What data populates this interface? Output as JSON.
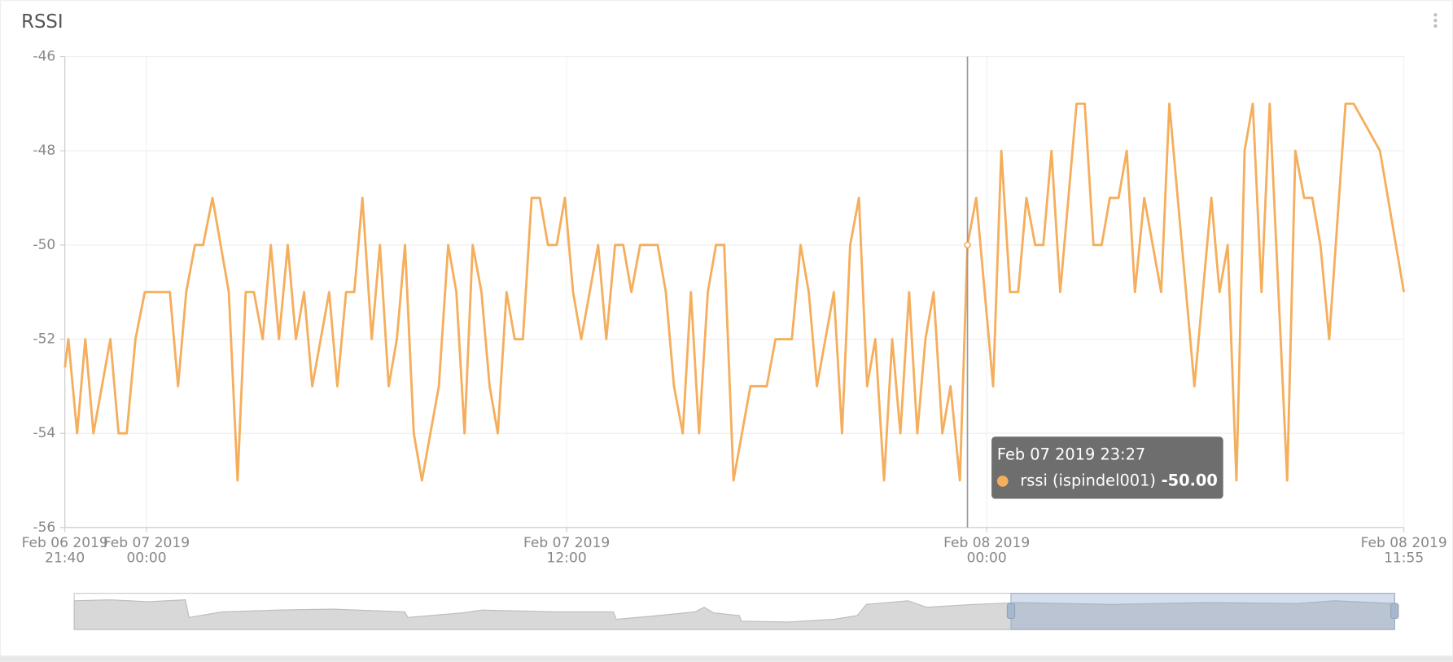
{
  "chart_data": {
    "type": "line",
    "title": "RSSI",
    "x": [
      "2019-02-06T21:40",
      "2019-02-06T21:46",
      "2019-02-06T22:01",
      "2019-02-06T22:15",
      "2019-02-06T22:29",
      "2019-02-06T22:58",
      "2019-02-06T23:12",
      "2019-02-06T23:26",
      "2019-02-06T23:41",
      "2019-02-06T23:57",
      "2019-02-07T00:40",
      "2019-02-07T00:54",
      "2019-02-07T01:08",
      "2019-02-07T01:23",
      "2019-02-07T01:37",
      "2019-02-07T01:53",
      "2019-02-07T02:21",
      "2019-02-07T02:36",
      "2019-02-07T02:50",
      "2019-02-07T03:04",
      "2019-02-07T03:19",
      "2019-02-07T03:33",
      "2019-02-07T03:47",
      "2019-02-07T04:02",
      "2019-02-07T04:16",
      "2019-02-07T04:30",
      "2019-02-07T04:44",
      "2019-02-07T05:13",
      "2019-02-07T05:27",
      "2019-02-07T05:42",
      "2019-02-07T05:56",
      "2019-02-07T06:10",
      "2019-02-07T06:26",
      "2019-02-07T06:40",
      "2019-02-07T06:55",
      "2019-02-07T07:09",
      "2019-02-07T07:23",
      "2019-02-07T07:38",
      "2019-02-07T07:52",
      "2019-02-07T08:21",
      "2019-02-07T08:37",
      "2019-02-07T08:51",
      "2019-02-07T09:05",
      "2019-02-07T09:19",
      "2019-02-07T09:34",
      "2019-02-07T09:48",
      "2019-02-07T10:02",
      "2019-02-07T10:17",
      "2019-02-07T10:31",
      "2019-02-07T10:45",
      "2019-02-07T11:00",
      "2019-02-07T11:14",
      "2019-02-07T11:28",
      "2019-02-07T11:43",
      "2019-02-07T11:57",
      "2019-02-07T12:11",
      "2019-02-07T12:25",
      "2019-02-07T12:54",
      "2019-02-07T13:08",
      "2019-02-07T13:23",
      "2019-02-07T13:37",
      "2019-02-07T13:51",
      "2019-02-07T14:06",
      "2019-02-07T14:36",
      "2019-02-07T14:50",
      "2019-02-07T15:04",
      "2019-02-07T15:19",
      "2019-02-07T15:33",
      "2019-02-07T15:47",
      "2019-02-07T16:02",
      "2019-02-07T16:16",
      "2019-02-07T16:30",
      "2019-02-07T16:46",
      "2019-02-07T17:15",
      "2019-02-07T17:43",
      "2019-02-07T17:58",
      "2019-02-07T18:26",
      "2019-02-07T18:41",
      "2019-02-07T18:55",
      "2019-02-07T19:09",
      "2019-02-07T19:38",
      "2019-02-07T19:52",
      "2019-02-07T20:06",
      "2019-02-07T20:21",
      "2019-02-07T20:35",
      "2019-02-07T20:49",
      "2019-02-07T21:04",
      "2019-02-07T21:18",
      "2019-02-07T21:32",
      "2019-02-07T21:47",
      "2019-02-07T22:01",
      "2019-02-07T22:15",
      "2019-02-07T22:29",
      "2019-02-07T22:44",
      "2019-02-07T22:58",
      "2019-02-07T23:14",
      "2019-02-07T23:27",
      "2019-02-07T23:42",
      "2019-02-08T00:11",
      "2019-02-08T00:25",
      "2019-02-08T00:40",
      "2019-02-08T00:54",
      "2019-02-08T01:08",
      "2019-02-08T01:23",
      "2019-02-08T01:37",
      "2019-02-08T01:51",
      "2019-02-08T02:06",
      "2019-02-08T02:34",
      "2019-02-08T02:48",
      "2019-02-08T03:03",
      "2019-02-08T03:17",
      "2019-02-08T03:31",
      "2019-02-08T03:46",
      "2019-02-08T04:00",
      "2019-02-08T04:14",
      "2019-02-08T04:30",
      "2019-02-08T04:59",
      "2019-02-08T05:13",
      "2019-02-08T05:56",
      "2019-02-08T06:25",
      "2019-02-08T06:39",
      "2019-02-08T06:53",
      "2019-02-08T07:08",
      "2019-02-08T07:22",
      "2019-02-08T07:36",
      "2019-02-08T07:51",
      "2019-02-08T08:05",
      "2019-02-08T08:35",
      "2019-02-08T08:49",
      "2019-02-08T09:04",
      "2019-02-08T09:18",
      "2019-02-08T09:32",
      "2019-02-08T09:47",
      "2019-02-08T10:15",
      "2019-02-08T10:29",
      "2019-02-08T11:14",
      "2019-02-08T11:55"
    ],
    "series": [
      {
        "name": "rssi (ispindel001)",
        "color": "#f5ae5c",
        "values": [
          -52.6,
          -52,
          -54,
          -52,
          -54,
          -52,
          -54,
          -54,
          -52,
          -51,
          -51,
          -53,
          -51,
          -50,
          -50,
          -49,
          -51,
          -55,
          -51,
          -51,
          -52,
          -50,
          -52,
          -50,
          -52,
          -51,
          -53,
          -51,
          -53,
          -51,
          -51,
          -49,
          -52,
          -50,
          -53,
          -52,
          -50,
          -54,
          -55,
          -53,
          -50,
          -51,
          -54,
          -50,
          -51,
          -53,
          -54,
          -51,
          -52,
          -52,
          -49,
          -49,
          -50,
          -50,
          -49,
          -51,
          -52,
          -50,
          -52,
          -50,
          -50,
          -51,
          -50,
          -50,
          -51,
          -53,
          -54,
          -51,
          -54,
          -51,
          -50,
          -50,
          -55,
          -53,
          -53,
          -52,
          -52,
          -50,
          -51,
          -53,
          -51,
          -54,
          -50,
          -49,
          -53,
          -52,
          -55,
          -52,
          -54,
          -51,
          -54,
          -52,
          -51,
          -54,
          -53,
          -55,
          -50,
          -49,
          -53,
          -48,
          -51,
          -51,
          -49,
          -50,
          -50,
          -48,
          -51,
          -47,
          -47,
          -50,
          -50,
          -49,
          -49,
          -48,
          -51,
          -49,
          -51,
          -47,
          -53,
          -49,
          -51,
          -50,
          -55,
          -48,
          -47,
          -51,
          -47,
          -55,
          -48,
          -49,
          -49,
          -50,
          -52,
          -47,
          -47,
          -48,
          -51
        ]
      }
    ],
    "xlim": [
      "2019-02-06T21:40",
      "2019-02-08T11:55"
    ],
    "xticks": [
      {
        "value": "2019-02-06T21:40",
        "label": [
          "Feb 06 2019",
          "21:40"
        ]
      },
      {
        "value": "2019-02-07T00:00",
        "label": [
          "Feb 07 2019",
          "00:00"
        ]
      },
      {
        "value": "2019-02-07T12:00",
        "label": [
          "Feb 07 2019",
          "12:00"
        ]
      },
      {
        "value": "2019-02-08T00:00",
        "label": [
          "Feb 08 2019",
          "00:00"
        ]
      },
      {
        "value": "2019-02-08T11:55",
        "label": [
          "Feb 08 2019",
          "11:55"
        ]
      }
    ],
    "ylim": [
      -56,
      -46
    ],
    "yticks": [
      -56,
      -54,
      -52,
      -50,
      -48,
      -46
    ],
    "grid": true,
    "tooltip": {
      "x": "2019-02-07T23:27",
      "label": "Feb 07 2019 23:27",
      "value": -50,
      "value_label": "-50.00"
    }
  }
}
